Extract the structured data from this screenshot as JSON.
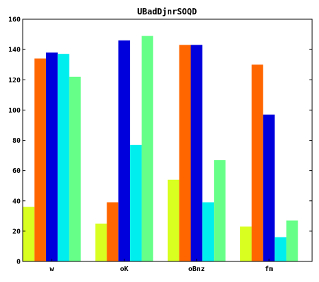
{
  "chart_data": {
    "type": "bar",
    "title": "UBadDjnrSOQD",
    "xlabel": "",
    "ylabel": "",
    "categories": [
      "w",
      "oK",
      "oBnz",
      "fm"
    ],
    "ylim": [
      0,
      160
    ],
    "yticks": [
      0,
      20,
      40,
      60,
      80,
      100,
      120,
      140,
      160
    ],
    "grid": false,
    "legend": "none",
    "series": [
      {
        "color": "#d8ff20",
        "values": [
          36,
          25,
          54,
          23
        ]
      },
      {
        "color": "#ff6600",
        "values": [
          134,
          39,
          143,
          130
        ]
      },
      {
        "color": "#0000dd",
        "values": [
          138,
          146,
          143,
          97
        ]
      },
      {
        "color": "#00eeee",
        "values": [
          137,
          77,
          39,
          16
        ]
      },
      {
        "color": "#66ff88",
        "values": [
          122,
          149,
          67,
          27
        ]
      }
    ]
  }
}
